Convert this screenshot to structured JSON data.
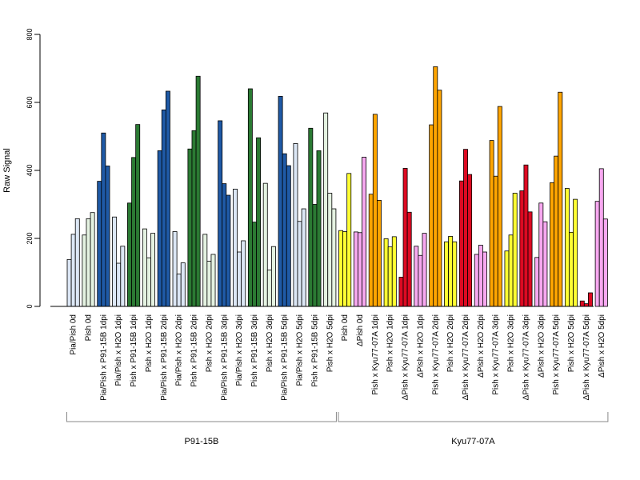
{
  "chart_data": {
    "type": "bar",
    "ylabel": "Raw Signal",
    "ylim": [
      0,
      800
    ],
    "yticks": [
      0,
      200,
      400,
      600,
      800
    ],
    "colors": {
      "lightblue": "#dce7f5",
      "darkblue": "#1f5aa6",
      "lightgreen": "#e4f2e1",
      "darkgreen": "#2b7a33",
      "yellow": "#ffff33",
      "pink": "#f7a8f0",
      "orange": "#ffa500",
      "red": "#dd0a22"
    },
    "categories": [
      {
        "label": "Pia/Pish 0d",
        "color": "lightblue",
        "values": [
          138,
          212,
          258
        ]
      },
      {
        "label": "Pish 0d",
        "color": "lightgreen",
        "values": [
          210,
          258,
          276
        ]
      },
      {
        "label": "Pia/Pish x P91-15B 1dpi",
        "color": "darkblue",
        "values": [
          368,
          510,
          413
        ]
      },
      {
        "label": "Pia/Pish x H2O 1dpi",
        "color": "lightblue",
        "values": [
          263,
          127,
          177
        ]
      },
      {
        "label": "Pish x P91-15B 1dpi",
        "color": "darkgreen",
        "values": [
          304,
          438,
          535
        ]
      },
      {
        "label": "Pish x H2O 1dpi",
        "color": "lightgreen",
        "values": [
          228,
          143,
          215
        ]
      },
      {
        "label": "Pia/Pish x P91-15B 2dpi",
        "color": "darkblue",
        "values": [
          458,
          578,
          633
        ]
      },
      {
        "label": "Pia/Pish x H2O 2dpi",
        "color": "lightblue",
        "values": [
          220,
          95,
          128
        ]
      },
      {
        "label": "Pish x P91-15B 2dpi",
        "color": "darkgreen",
        "values": [
          463,
          517,
          677
        ]
      },
      {
        "label": "Pish x H2O 2dpi",
        "color": "lightgreen",
        "values": [
          212,
          133,
          153
        ]
      },
      {
        "label": "Pia/Pish x P91-15B 3dpi",
        "color": "darkblue",
        "values": [
          546,
          361,
          327
        ]
      },
      {
        "label": "Pia/Pish x H2O 3dpi",
        "color": "lightblue",
        "values": [
          345,
          160,
          193
        ]
      },
      {
        "label": "Pish x P91-15B 3dpi",
        "color": "darkgreen",
        "values": [
          640,
          248,
          496
        ]
      },
      {
        "label": "Pish x H2O 3dpi",
        "color": "lightgreen",
        "values": [
          362,
          107,
          176
        ]
      },
      {
        "label": "Pia/Pish x P91-15B 5dpi",
        "color": "darkblue",
        "values": [
          618,
          449,
          414
        ]
      },
      {
        "label": "Pia/Pish x H2O 5dpi",
        "color": "lightblue",
        "values": [
          479,
          250,
          287
        ]
      },
      {
        "label": "Pish x P91-15B 5dpi",
        "color": "darkgreen",
        "values": [
          524,
          300,
          458
        ]
      },
      {
        "label": "Pish x H2O 5dpi",
        "color": "lightgreen",
        "values": [
          569,
          333,
          287
        ]
      },
      {
        "label": "Pish 0d",
        "color": "yellow",
        "values": [
          223,
          220,
          391
        ]
      },
      {
        "label": "ΔPish 0d",
        "color": "pink",
        "values": [
          219,
          217,
          439
        ]
      },
      {
        "label": "Pish x Kyu77-07A 1dpi",
        "color": "orange",
        "values": [
          330,
          565,
          312
        ]
      },
      {
        "label": "Pish x H2O 1dpi",
        "color": "yellow",
        "values": [
          199,
          175,
          205
        ]
      },
      {
        "label": "ΔPish x Kyu77-07A 1dpi",
        "color": "red",
        "values": [
          86,
          406,
          277
        ]
      },
      {
        "label": "ΔPish x H2O 1dpi",
        "color": "pink",
        "values": [
          177,
          150,
          215
        ]
      },
      {
        "label": "Pish x Kyu77-07A 2dpi",
        "color": "orange",
        "values": [
          534,
          705,
          636
        ]
      },
      {
        "label": "Pish x H2O 2dpi",
        "color": "yellow",
        "values": [
          190,
          206,
          190
        ]
      },
      {
        "label": "ΔPish x Kyu77-07A 2dpi",
        "color": "red",
        "values": [
          369,
          462,
          388
        ]
      },
      {
        "label": "ΔPish x H2O 2dpi",
        "color": "pink",
        "values": [
          153,
          180,
          160
        ]
      },
      {
        "label": "Pish x Kyu77-07A 3dpi",
        "color": "orange",
        "values": [
          488,
          383,
          588
        ]
      },
      {
        "label": "Pish x H2O 3dpi",
        "color": "yellow",
        "values": [
          163,
          210,
          333
        ]
      },
      {
        "label": "ΔPish x Kyu77-07A 3dpi",
        "color": "red",
        "values": [
          340,
          416,
          278
        ]
      },
      {
        "label": "ΔPish x H2O 3dpi",
        "color": "pink",
        "values": [
          144,
          304,
          249
        ]
      },
      {
        "label": "Pish x Kyu77-07A 5dpi",
        "color": "orange",
        "values": [
          364,
          442,
          630
        ]
      },
      {
        "label": "Pish x H2O 5dpi",
        "color": "yellow",
        "values": [
          347,
          218,
          315
        ]
      },
      {
        "label": "ΔPish x Kyu77-07A 5dpi",
        "color": "red",
        "values": [
          16,
          8,
          40
        ]
      },
      {
        "label": "ΔPish x H2O 5dpi",
        "color": "pink",
        "values": [
          309,
          405,
          257
        ]
      }
    ],
    "groups": [
      {
        "label": "P91-15B",
        "first": 0,
        "last": 17
      },
      {
        "label": "Kyu77-07A",
        "first": 18,
        "last": 35
      }
    ]
  }
}
